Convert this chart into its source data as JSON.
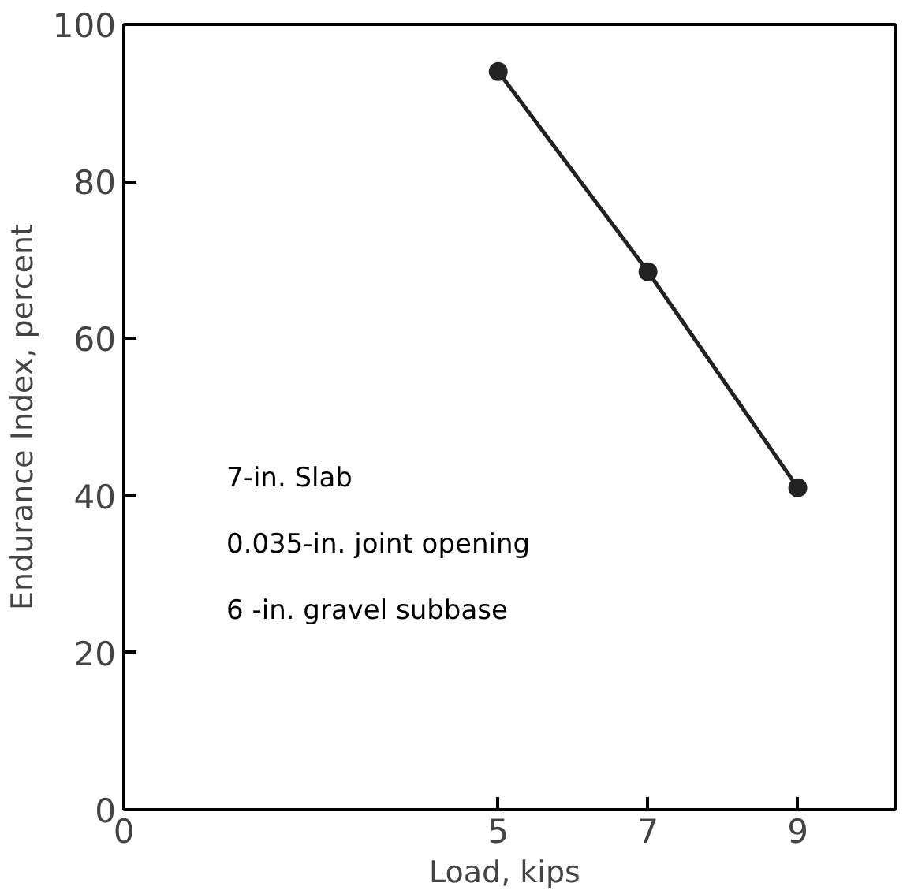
{
  "chart_data": {
    "type": "line",
    "xlabel": "Load,  kips",
    "ylabel": "Endurance Index, percent",
    "x": [
      5,
      7,
      9
    ],
    "series": [
      {
        "color": "#222222",
        "values": [
          94,
          68.5,
          41
        ]
      }
    ],
    "xlim": [
      0,
      10.3
    ],
    "xticks": [
      0,
      5,
      7,
      9
    ],
    "ylim": [
      0,
      100
    ],
    "yticks": [
      0,
      20,
      40,
      60,
      80,
      100
    ],
    "marker": "circle",
    "line_style": "solid",
    "grid": false,
    "annotations": [
      "7-in. Slab",
      "0.035-in. joint opening",
      "6 -in. gravel subbase"
    ]
  }
}
